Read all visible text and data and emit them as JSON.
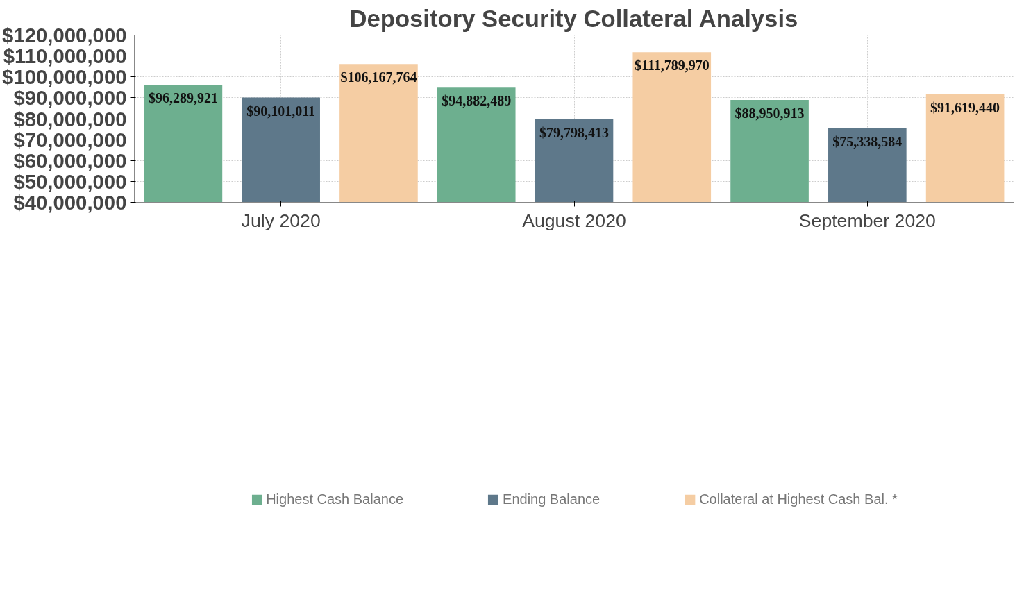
{
  "chart_data": {
    "type": "bar",
    "title": "Depository Security Collateral Analysis",
    "categories": [
      "July 2020",
      "August 2020",
      "September 2020"
    ],
    "series": [
      {
        "name": "Highest Cash Balance",
        "color": "#6daf8f",
        "values": [
          96289921,
          94882489,
          88950913
        ]
      },
      {
        "name": "Ending Balance",
        "color": "#5e788a",
        "values": [
          90101011,
          79798413,
          75338584
        ]
      },
      {
        "name": "Collateral at Highest Cash Bal. *",
        "color": "#f5cda3",
        "values": [
          106167764,
          111789970,
          91619440
        ]
      }
    ],
    "ylim": [
      40000000,
      120000000
    ],
    "yticks": [
      {
        "value": 40000000,
        "label": "$40,000,000"
      },
      {
        "value": 50000000,
        "label": "$50,000,000"
      },
      {
        "value": 60000000,
        "label": "$60,000,000"
      },
      {
        "value": 70000000,
        "label": "$70,000,000"
      },
      {
        "value": 80000000,
        "label": "$80,000,000"
      },
      {
        "value": 90000000,
        "label": "$90,000,000"
      },
      {
        "value": 100000000,
        "label": "$100,000,000"
      },
      {
        "value": 110000000,
        "label": "$110,000,000"
      },
      {
        "value": 120000000,
        "label": "$120,000,000"
      }
    ],
    "value_labels": [
      [
        "$96,289,921",
        "$94,882,489",
        "$88,950,913"
      ],
      [
        "$90,101,011",
        "$79,798,413",
        "$75,338,584"
      ],
      [
        "$106,167,764",
        "$111,789,970",
        "$91,619,440"
      ]
    ],
    "grid": true,
    "legend": "bottom"
  }
}
